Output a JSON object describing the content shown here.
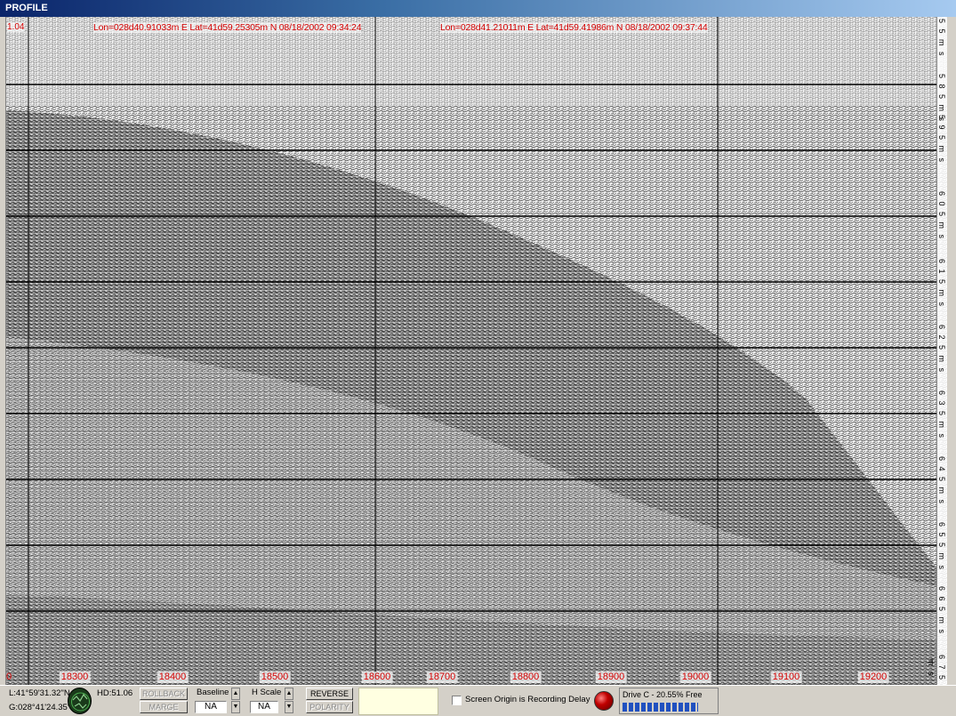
{
  "window": {
    "title": "PROFILE"
  },
  "plot": {
    "corner_label": "1.04",
    "nav_annotations": [
      "Lon=028d40.91033m E Lat=41d59.25305m N 08/18/2002 09:34:24",
      "Lon=028d41.21011m E Lat=41d59.41986m N 08/18/2002 09:37:44"
    ],
    "x_axis": {
      "first_label": "0",
      "ticks": [
        "18300",
        "18400",
        "18500",
        "18600",
        "18700",
        "18800",
        "18900",
        "19000",
        "19100",
        "19200"
      ]
    },
    "y_axis": {
      "ticks": [
        "5 5 m s",
        "5 8 5 m s",
        "5 9 5 m s",
        "6 0 5 m s",
        "6 1 5 m s",
        "6 2 5 m s",
        "6 3 5 m s",
        "6 4 5 m s",
        "6 5 5 m s",
        "6 6 5 m s",
        "6 7 5 m s"
      ]
    },
    "colors": {
      "annotation": "#d40000",
      "grid": "#000000"
    }
  },
  "status": {
    "lat": "L:41°59'31.32\"N",
    "lon": "G:028°41'24.35\"",
    "heading": "HD:51.06",
    "buttons": {
      "top_left": "ROLLBACK",
      "bottom_left": "MARGE",
      "reverse": "REVERSE",
      "polarity": "POLARITY"
    },
    "baseline": {
      "label": "Baseline",
      "value": "NA"
    },
    "hscale": {
      "label": "H Scale",
      "value": "NA"
    },
    "checkbox_label": "Screen Origin is Recording Delay",
    "drive": {
      "label": "Drive C - 20.55% Free",
      "free_fraction": 0.2055
    }
  }
}
